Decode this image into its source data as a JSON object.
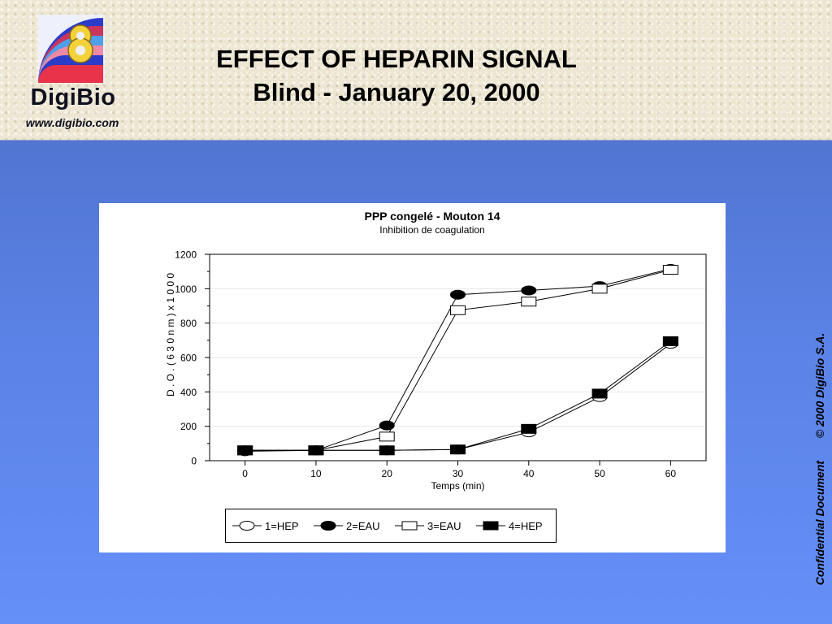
{
  "header": {
    "brand_name": "DigiBio",
    "brand_url": "www.digibio.com",
    "title_line1": "EFFECT OF HEPARIN SIGNAL",
    "title_line2": "Blind - January 20, 2000"
  },
  "side_note": {
    "confidential": "Confidential Document",
    "copyright": "© 2000 DigiBio S.A."
  },
  "colors": {
    "background_top": "#4a6cc3",
    "background_bottom": "#6590f7",
    "header_bg": "#ece6d2",
    "logo_blue": "#2b3cc8",
    "logo_red": "#e8334a",
    "logo_yellow": "#f3d13a"
  },
  "chart_data": {
    "type": "line",
    "title": "PPP congelé - Mouton 14",
    "subtitle": "Inhibition de coagulation",
    "xlabel": "Temps (min)",
    "ylabel": "D . O . ( 6 3 0 n m ) x 1 0 0 0",
    "x": [
      0,
      10,
      20,
      30,
      40,
      50,
      60
    ],
    "xlim": [
      -5,
      65
    ],
    "ylim": [
      0,
      1200
    ],
    "x_ticks": [
      "0",
      "10",
      "20",
      "30",
      "40",
      "50",
      "60"
    ],
    "y_ticks": [
      "0",
      "200",
      "400",
      "600",
      "800",
      "1000",
      "1200"
    ],
    "grid": true,
    "legend_position": "bottom",
    "series": [
      {
        "name": "1=HEP",
        "marker": "open-circle",
        "values": [
          55,
          60,
          60,
          65,
          165,
          370,
          680
        ]
      },
      {
        "name": "2=EAU",
        "marker": "filled-circle",
        "values": [
          60,
          60,
          205,
          965,
          990,
          1015,
          1115
        ]
      },
      {
        "name": "3=EAU",
        "marker": "open-square",
        "values": [
          60,
          60,
          140,
          875,
          925,
          1000,
          1110
        ]
      },
      {
        "name": "4=HEP",
        "marker": "filled-square",
        "values": [
          60,
          60,
          60,
          65,
          185,
          390,
          695
        ]
      }
    ]
  }
}
